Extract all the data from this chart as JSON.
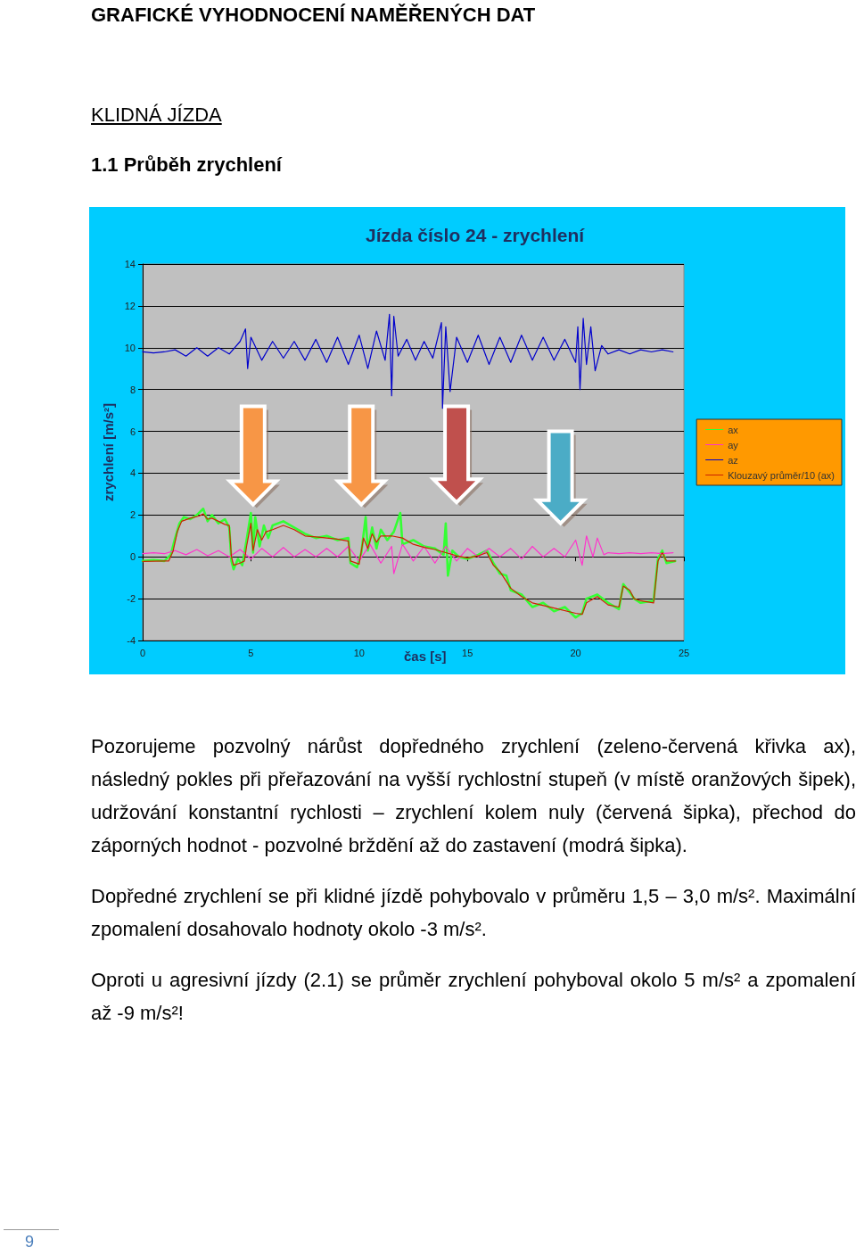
{
  "chart_data": {
    "type": "line",
    "title": "Jízda číslo 24 - zrychlení",
    "xlabel": "čas [s]",
    "ylabel": "zrychlení [m/s²]",
    "xlim": [
      0,
      25
    ],
    "xticks": [
      0,
      5,
      10,
      15,
      20,
      25
    ],
    "ylim": [
      -4,
      14
    ],
    "yticks": [
      -4,
      -2,
      0,
      2,
      4,
      6,
      8,
      10,
      12,
      14
    ],
    "grid": "y",
    "legend": "right",
    "marker": "none",
    "line_style": "solid",
    "series": [
      {
        "name": "ax",
        "color": "#33ff33",
        "x": [
          0,
          0.5,
          1.0,
          1.3,
          1.5,
          1.7,
          1.9,
          2.2,
          2.5,
          2.8,
          3.0,
          3.2,
          3.5,
          3.8,
          4.0,
          4.1,
          4.2,
          4.4,
          4.6,
          4.8,
          5.0,
          5.1,
          5.2,
          5.4,
          5.6,
          5.8,
          6.0,
          6.5,
          7.0,
          7.5,
          8.0,
          8.5,
          9.0,
          9.5,
          9.6,
          9.9,
          10.1,
          10.3,
          10.4,
          10.6,
          10.8,
          11.0,
          11.3,
          11.6,
          11.9,
          12.0,
          12.5,
          13.0,
          13.5,
          13.9,
          14.0,
          14.1,
          14.3,
          14.6,
          15.0,
          15.5,
          15.9,
          16.2,
          16.5,
          16.8,
          17.0,
          17.5,
          18.0,
          18.5,
          19.0,
          19.5,
          20.0,
          20.3,
          20.5,
          21.0,
          21.5,
          22.0,
          22.2,
          22.5,
          22.7,
          23.0,
          23.6,
          23.8,
          24.0,
          24.2,
          24.6
        ],
        "values": [
          -0.2,
          -0.15,
          -0.2,
          0.1,
          0.9,
          1.6,
          1.9,
          1.8,
          2.0,
          2.3,
          1.7,
          2.0,
          1.6,
          1.8,
          1.4,
          -0.2,
          -0.6,
          -0.1,
          -0.4,
          0.8,
          2.1,
          0.2,
          1.9,
          0.5,
          1.5,
          0.9,
          1.5,
          1.7,
          1.4,
          1.1,
          0.9,
          1.0,
          0.8,
          0.9,
          -0.3,
          -0.5,
          0.2,
          1.9,
          0.3,
          1.4,
          0.4,
          1.3,
          0.8,
          1.2,
          2.1,
          0.6,
          0.8,
          0.5,
          0.4,
          0.1,
          1.6,
          -0.9,
          0.3,
          0.0,
          -0.1,
          0.1,
          0.3,
          -0.3,
          -0.8,
          -0.9,
          -1.6,
          -1.8,
          -2.4,
          -2.2,
          -2.6,
          -2.4,
          -2.9,
          -2.7,
          -2.0,
          -1.8,
          -2.2,
          -2.5,
          -1.3,
          -1.7,
          -2.0,
          -2.2,
          -2.1,
          -0.1,
          0.3,
          -0.3,
          -0.2
        ]
      },
      {
        "name": "ay",
        "color": "#ff33cc",
        "x": [
          0,
          0.5,
          1.0,
          1.5,
          2.0,
          2.5,
          3.0,
          3.5,
          4.0,
          4.5,
          5.0,
          5.5,
          6.0,
          6.5,
          7.0,
          7.5,
          8.0,
          8.5,
          9.0,
          9.5,
          10.0,
          10.5,
          11.0,
          11.5,
          11.6,
          12.0,
          12.5,
          13.0,
          13.5,
          14.0,
          14.5,
          15.0,
          15.5,
          16.0,
          16.5,
          17.0,
          17.5,
          18.0,
          18.5,
          19.0,
          19.5,
          20.0,
          20.3,
          20.5,
          20.8,
          21.0,
          21.3,
          21.5,
          22.0,
          22.5,
          23.0,
          23.5,
          24.0,
          24.5
        ],
        "values": [
          0.15,
          0.2,
          0.15,
          0.3,
          0.1,
          0.35,
          0.05,
          0.3,
          0.0,
          0.35,
          -0.1,
          0.4,
          0.0,
          0.45,
          0.0,
          0.35,
          0.0,
          0.4,
          0.0,
          0.5,
          -0.2,
          0.6,
          -0.3,
          0.5,
          -0.8,
          0.6,
          -0.2,
          0.5,
          -0.3,
          0.5,
          -0.2,
          0.4,
          0.0,
          0.4,
          0.0,
          0.4,
          -0.1,
          0.5,
          0.0,
          0.4,
          0.0,
          0.8,
          -0.4,
          1.0,
          0.0,
          0.9,
          0.1,
          0.2,
          0.15,
          0.2,
          0.15,
          0.2,
          0.15,
          0.2
        ]
      },
      {
        "name": "az",
        "color": "#0000cc",
        "x": [
          0,
          0.5,
          1.0,
          1.5,
          2.0,
          2.5,
          3.0,
          3.5,
          4.0,
          4.5,
          4.75,
          4.85,
          5.0,
          5.5,
          6.0,
          6.5,
          7.0,
          7.5,
          8.0,
          8.5,
          9.0,
          9.5,
          10.0,
          10.4,
          10.8,
          11.2,
          11.4,
          11.5,
          11.6,
          11.8,
          12.2,
          12.6,
          13.0,
          13.4,
          13.8,
          13.85,
          14.0,
          14.2,
          14.5,
          15.0,
          15.5,
          16.0,
          16.5,
          17.0,
          17.5,
          18.0,
          18.5,
          19.0,
          19.5,
          20.0,
          20.1,
          20.2,
          20.35,
          20.5,
          20.7,
          20.9,
          21.2,
          21.5,
          22.0,
          22.5,
          23.0,
          23.5,
          24.0,
          24.5
        ],
        "values": [
          9.8,
          9.75,
          9.8,
          9.9,
          9.6,
          10.0,
          9.6,
          10.0,
          9.7,
          10.3,
          10.9,
          9.0,
          10.5,
          9.4,
          10.3,
          9.5,
          10.3,
          9.4,
          10.4,
          9.3,
          10.5,
          9.2,
          10.6,
          9.0,
          10.8,
          9.4,
          11.6,
          7.7,
          11.5,
          9.6,
          10.4,
          9.4,
          10.3,
          9.5,
          11.2,
          7.1,
          11.0,
          7.9,
          10.5,
          9.3,
          10.6,
          9.2,
          10.5,
          9.3,
          10.6,
          9.4,
          10.5,
          9.4,
          10.4,
          9.3,
          11.0,
          8.0,
          11.4,
          9.2,
          11.0,
          8.9,
          10.1,
          9.7,
          9.9,
          9.7,
          9.9,
          9.8,
          9.9,
          9.8
        ]
      },
      {
        "name": "Klouzavý průměr/10 (ax)",
        "color": "#cc2200",
        "x": [
          0,
          1.0,
          1.2,
          1.4,
          1.6,
          1.8,
          2.2,
          2.6,
          2.8,
          3.0,
          3.2,
          3.5,
          3.8,
          4.0,
          4.1,
          4.2,
          4.5,
          4.7,
          4.8,
          5.0,
          5.1,
          5.3,
          5.5,
          5.7,
          6.0,
          6.5,
          7.0,
          7.5,
          8.0,
          9.0,
          9.5,
          9.6,
          10.0,
          10.2,
          10.4,
          10.6,
          10.8,
          11.0,
          11.5,
          12.0,
          12.5,
          13.0,
          13.5,
          14.0,
          14.5,
          15.0,
          15.5,
          15.9,
          16.2,
          16.5,
          17.0,
          17.5,
          18.0,
          19.0,
          20.0,
          20.3,
          20.5,
          21.0,
          21.5,
          22.0,
          22.2,
          22.5,
          22.7,
          23.0,
          23.6,
          23.8,
          24.0,
          24.2,
          24.6
        ],
        "values": [
          -0.22,
          -0.2,
          -0.2,
          0.25,
          1.2,
          1.7,
          1.85,
          1.95,
          2.05,
          1.8,
          1.85,
          1.7,
          1.55,
          1.5,
          0,
          -0.4,
          -0.3,
          -0.2,
          0.5,
          1.6,
          0.3,
          1.3,
          0.8,
          1.2,
          1.3,
          1.5,
          1.3,
          1.0,
          0.95,
          0.85,
          0.75,
          -0.2,
          -0.35,
          0.9,
          0.4,
          1.1,
          0.7,
          1.0,
          1.0,
          0.9,
          0.6,
          0.45,
          0.35,
          0.2,
          0.05,
          -0.05,
          0.05,
          0.2,
          -0.4,
          -0.7,
          -1.5,
          -1.9,
          -2.2,
          -2.45,
          -2.7,
          -2.75,
          -2.2,
          -1.9,
          -2.3,
          -2.4,
          -1.4,
          -1.6,
          -2.0,
          -2.1,
          -2.2,
          -0.2,
          0.2,
          -0.2,
          -0.2
        ]
      }
    ],
    "annotations": [
      "GRAFICKÉ VYHODNOCENÍ NAMĚŘENÝCH DAT",
      "KLIDNÁ JÍZDA",
      "1.1 Průběh zrychlení",
      "Pozorujeme pozvolný nárůst dopředného zrychlení (zeleno-červená křivka ax), následný pokles při přeřazování na vyšší rychlostní stupeň (v místě oranžových šipek), udržování konstantní rychlosti – zrychlení kolem nuly (červená šipka), přechod do záporných hodnot - pozvolné brždění až do zastavení (modrá šipka).",
      "Dopředné zrychlení se při klidné jízdě pohybovalo v průměru 1,5 – 3,0 m/s². Maximální zpomalení dosahovalo hodnoty okolo -3 m/s².",
      "Oproti u agresivní jízdy (2.1) se průměr zrychlení pohyboval okolo 5 m/s² a zpomalení až -9 m/s²!",
      "9"
    ]
  }
}
